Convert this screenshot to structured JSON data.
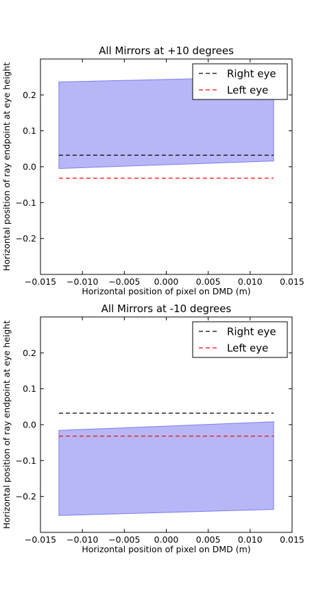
{
  "chart_data": [
    {
      "type": "area",
      "title": "All Mirrors at +10 degrees",
      "xlabel": "Horizontal position of pixel on DMD (m)",
      "ylabel": "Horizontal position of ray endpoint at eye height",
      "xlim": [
        -0.015,
        0.015
      ],
      "ylim": [
        -0.3,
        0.3
      ],
      "xticks": [
        -0.015,
        -0.01,
        -0.005,
        0.0,
        0.005,
        0.01,
        0.015
      ],
      "xtick_labels": [
        "−0.015",
        "−0.010",
        "−0.005",
        "0.000",
        "0.005",
        "0.010",
        "0.015"
      ],
      "yticks": [
        0.2,
        0.1,
        0.0,
        -0.1,
        -0.2
      ],
      "ytick_labels": [
        "0.2",
        "0.1",
        "0.0",
        "−0.1",
        "−0.2"
      ],
      "grid": false,
      "legend": "top-right",
      "band": {
        "x": [
          -0.0128,
          0.0128
        ],
        "upper": [
          0.236,
          0.25
        ],
        "lower": [
          -0.005,
          0.016
        ],
        "color": "#7b7bf0"
      },
      "series": [
        {
          "name": "Right eye",
          "x": [
            -0.0128,
            0.0128
          ],
          "values": [
            0.032,
            0.032
          ],
          "color": "#000000",
          "dash": true
        },
        {
          "name": "Left eye",
          "x": [
            -0.0128,
            0.0128
          ],
          "values": [
            -0.032,
            -0.032
          ],
          "color": "#ff0000",
          "dash": true
        }
      ]
    },
    {
      "type": "area",
      "title": "All Mirrors at -10 degrees",
      "xlabel": "Horizontal position of pixel on DMD (m)",
      "ylabel": "Horizontal position of ray endpoint at eye height",
      "xlim": [
        -0.015,
        0.015
      ],
      "ylim": [
        -0.3,
        0.3
      ],
      "xticks": [
        -0.015,
        -0.01,
        -0.005,
        0.0,
        0.005,
        0.01,
        0.015
      ],
      "xtick_labels": [
        "−0.015",
        "−0.010",
        "−0.005",
        "0.000",
        "0.005",
        "0.010",
        "0.015"
      ],
      "yticks": [
        0.2,
        0.1,
        0.0,
        -0.1,
        -0.2
      ],
      "ytick_labels": [
        "0.2",
        "0.1",
        "0.0",
        "−0.1",
        "−0.2"
      ],
      "grid": false,
      "legend": "top-right",
      "band": {
        "x": [
          -0.0128,
          0.0128
        ],
        "upper": [
          -0.016,
          0.008
        ],
        "lower": [
          -0.253,
          -0.236
        ],
        "color": "#7b7bf0"
      },
      "series": [
        {
          "name": "Right eye",
          "x": [
            -0.0128,
            0.0128
          ],
          "values": [
            0.032,
            0.032
          ],
          "color": "#000000",
          "dash": true
        },
        {
          "name": "Left eye",
          "x": [
            -0.0128,
            0.0128
          ],
          "values": [
            -0.032,
            -0.032
          ],
          "color": "#ff0000",
          "dash": true
        }
      ]
    }
  ]
}
